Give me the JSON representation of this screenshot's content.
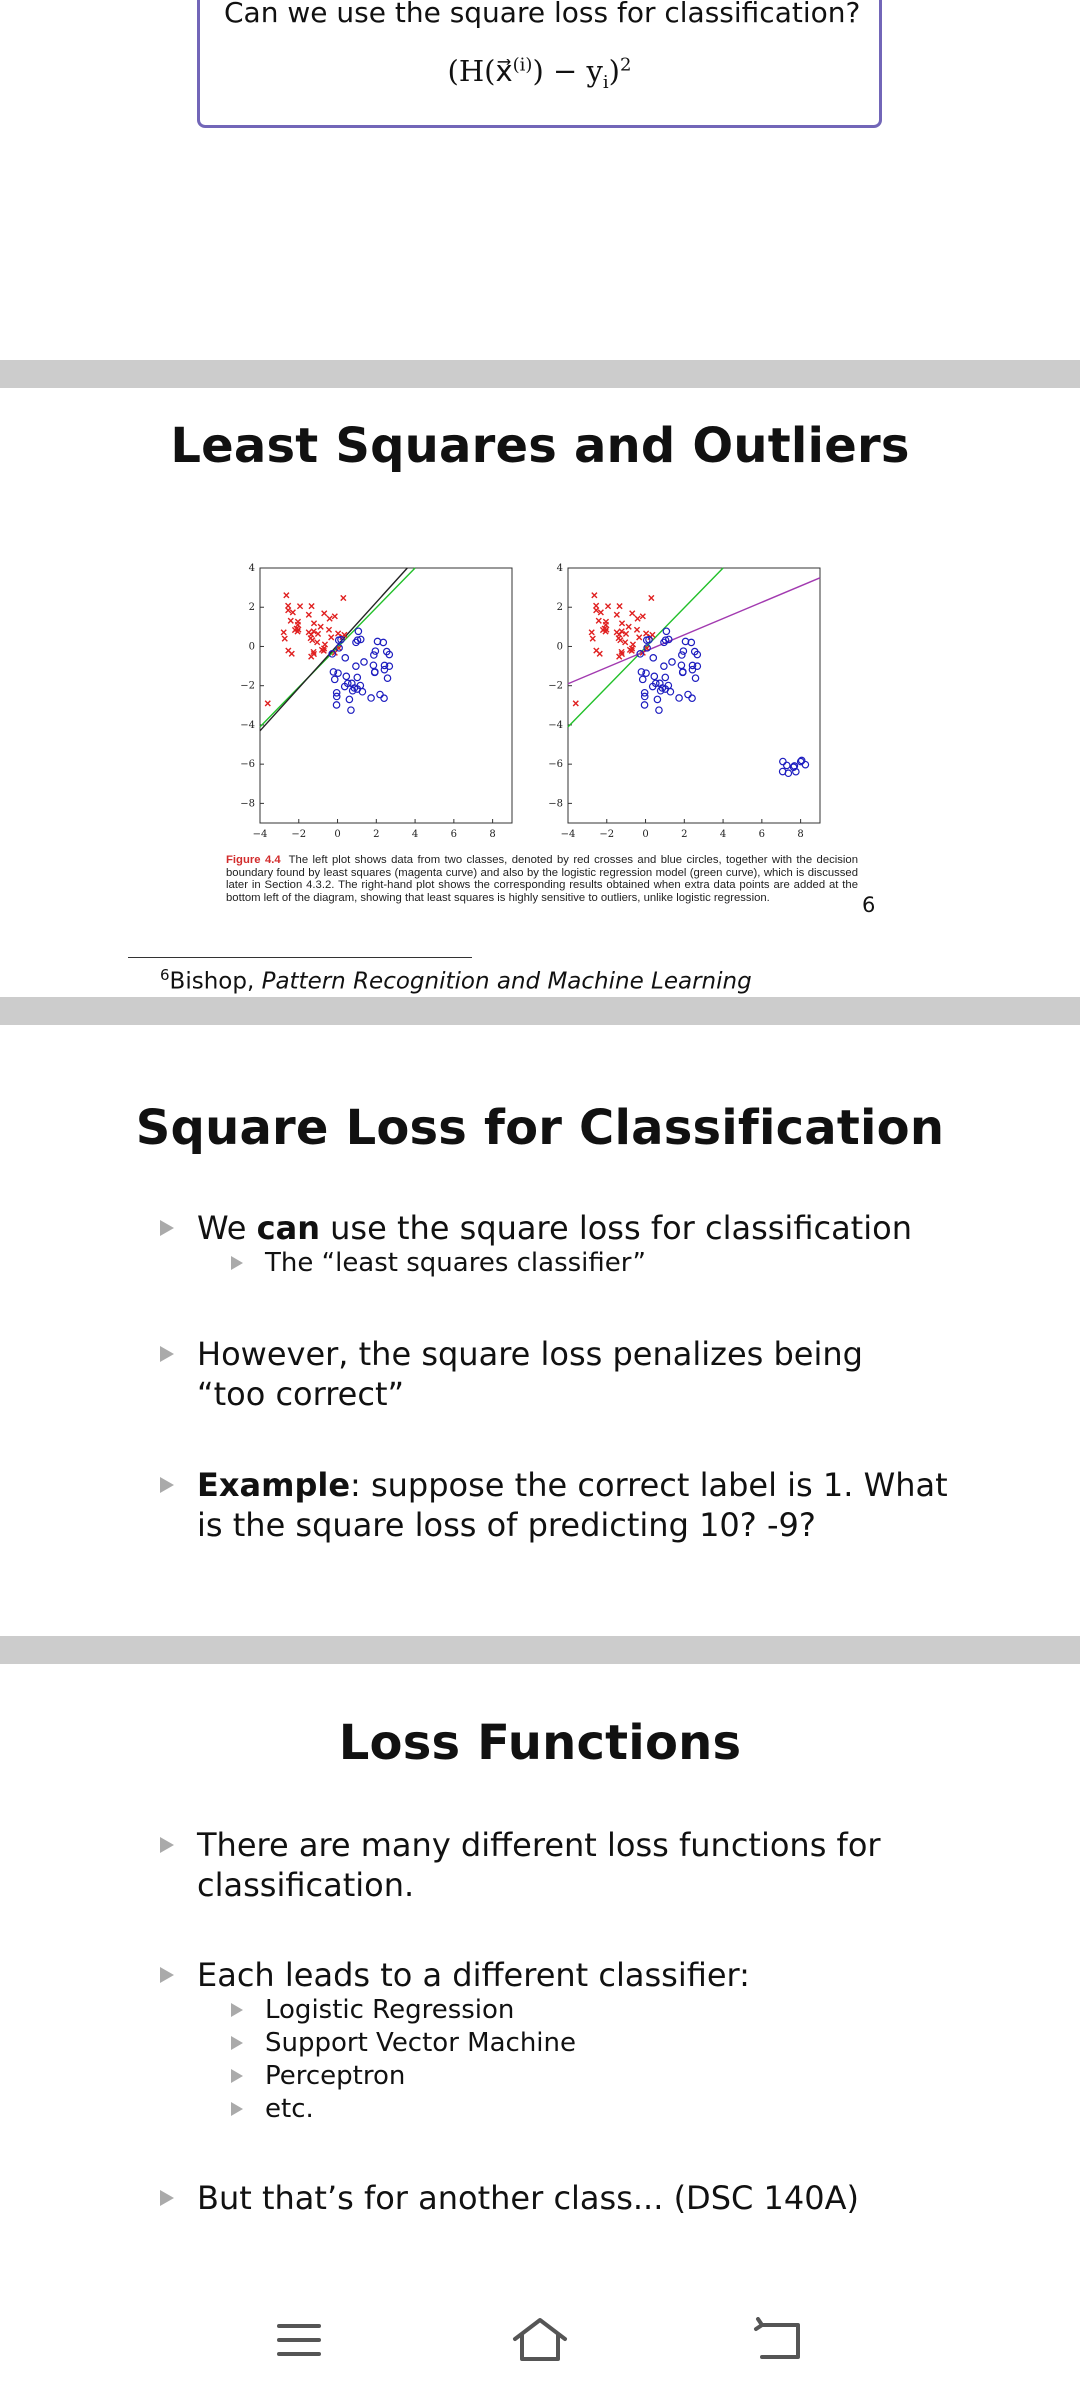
{
  "slide_top": {
    "callout_text": "Can we use the square loss for classification?",
    "formula_text": "(H(x⃗",
    "formula_sup": "(i)",
    "formula_mid": ") − y",
    "formula_sub": "i",
    "formula_end": ")",
    "formula_power": "2"
  },
  "slide_outliers": {
    "title": "Least Squares and Outliers",
    "caption_label": "Figure 4.4",
    "caption_text": "The left plot shows data from two classes, denoted by red crosses and blue circles, together with the decision boundary found by least squares (magenta curve) and also by the logistic regression model (green curve), which is discussed later in Section 4.3.2. The right-hand plot shows the corresponding results obtained when extra data points are added at the bottom left of the diagram, showing that least squares is highly sensitive to outliers, unlike logistic regression.",
    "slide_number": "6",
    "footnote_mark": "6",
    "footnote_author": "Bishop, ",
    "footnote_title": "Pattern Recognition and Machine Learning"
  },
  "slide_square_loss": {
    "title": "Square Loss for Classification",
    "b1_pre": "We ",
    "b1_bold": "can",
    "b1_post": " use the square loss for classification",
    "b1_sub": "The “least squares classifier”",
    "b2": "However, the square loss penalizes being “too correct”",
    "b3_bold": "Example",
    "b3_post": ": suppose the correct label is 1. What is the square loss of predicting 10? -9?"
  },
  "slide_loss_functions": {
    "title": "Loss Functions",
    "b1": "There are many different loss functions for classification.",
    "b2": "Each leads to a different classifier:",
    "sub_items": [
      "Logistic Regression",
      "Support Vector Machine",
      "Perceptron",
      "etc."
    ],
    "b3": "But that’s for another class... (DSC 140A)"
  },
  "figure": {
    "x_ticks": [
      "−4",
      "−2",
      "0",
      "2",
      "4",
      "6",
      "8"
    ],
    "y_ticks": [
      "4",
      "2",
      "0",
      "−2",
      "−4",
      "−6",
      "−8"
    ],
    "colors": {
      "red_cross": "#e02020",
      "blue_circle": "#1c1cbf",
      "green_line": "#22c02a",
      "magenta_line": "#a23ab0",
      "black_line": "#222222"
    }
  },
  "navbar": {
    "menu_icon": "menu-icon",
    "home_icon": "home-icon",
    "back_icon": "back-icon"
  }
}
